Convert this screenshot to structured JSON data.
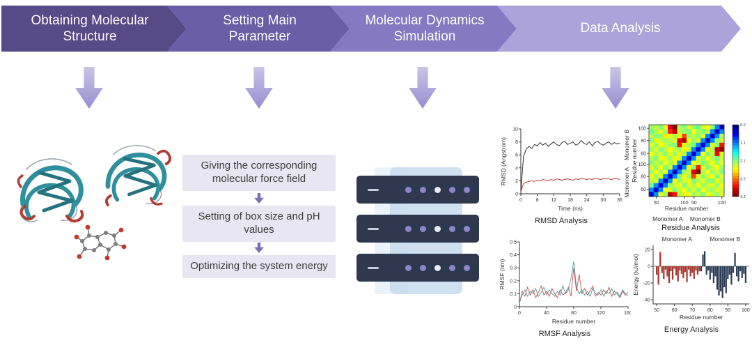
{
  "banners": [
    {
      "label": "Obtaining Molecular Structure",
      "color": "#564a87"
    },
    {
      "label": "Setting Main Parameter",
      "color": "#6a5ea6"
    },
    {
      "label": "Molecular Dynamics Simulation",
      "color": "#8579c2"
    },
    {
      "label": "Data Analysis",
      "color": "#aba3d9"
    }
  ],
  "arrows": {
    "flow_top": "#c9c4e8",
    "flow_bottom": "#968ed0"
  },
  "parameter_steps": {
    "boxes": [
      "Giving the corresponding molecular force field",
      "Setting of box size and pH values",
      "Optimizing the system energy"
    ],
    "box_bg": "#e9e6f4",
    "arrow_color": "#7a70b5"
  },
  "illustrations": {
    "protein": {
      "ribbon_color": "#2f8f9d",
      "strand_color": "#25727e",
      "helix_color": "#b23b32",
      "loop_color": "#98a0a8"
    },
    "server_rack": {
      "units": 3,
      "body_color": "#2e3950",
      "panel_color": "#cfe0f1",
      "led_color": "#8d85c9",
      "led_alt_color": "#e8ebf4"
    }
  },
  "chart_data": [
    {
      "id": "rmsd",
      "type": "line",
      "title": "RMSD Analysis",
      "xlabel": "Time (ns)",
      "ylabel": "RMSD (Angstrom)",
      "xlim": [
        0,
        36
      ],
      "ylim": [
        0,
        10
      ],
      "xticks": [
        0,
        6,
        12,
        18,
        24,
        30,
        36
      ],
      "yticks": [
        0,
        2,
        4,
        6,
        8,
        10
      ],
      "right_labels": [
        "Monomer B",
        "Monomer A"
      ],
      "series": [
        {
          "name": "Monomer B",
          "color": "#1a1a1a",
          "x": [
            0,
            1,
            2,
            3,
            4,
            5,
            6,
            7,
            8,
            9,
            10,
            11,
            12,
            13,
            14,
            15,
            16,
            17,
            18,
            19,
            20,
            21,
            22,
            23,
            24,
            25,
            26,
            27,
            28,
            29,
            30,
            31,
            32,
            33,
            34,
            35,
            36
          ],
          "y": [
            0.4,
            5.8,
            6.9,
            7.3,
            7.0,
            7.6,
            7.4,
            7.9,
            7.5,
            7.8,
            7.3,
            7.7,
            8.0,
            7.6,
            7.4,
            7.9,
            8.1,
            7.6,
            7.8,
            8.0,
            7.5,
            7.7,
            8.2,
            7.8,
            7.6,
            8.0,
            7.4,
            7.9,
            8.1,
            7.7,
            7.5,
            7.8,
            8.0,
            7.6,
            7.9,
            7.7,
            7.8
          ]
        },
        {
          "name": "Monomer A",
          "color": "#c1271d",
          "x": [
            0,
            1,
            2,
            3,
            4,
            5,
            6,
            7,
            8,
            9,
            10,
            11,
            12,
            13,
            14,
            15,
            16,
            17,
            18,
            19,
            20,
            21,
            22,
            23,
            24,
            25,
            26,
            27,
            28,
            29,
            30,
            31,
            32,
            33,
            34,
            35,
            36
          ],
          "y": [
            0.3,
            1.6,
            1.8,
            1.9,
            2.0,
            1.9,
            2.1,
            2.0,
            2.2,
            2.1,
            2.0,
            2.2,
            2.1,
            2.3,
            2.2,
            2.1,
            2.2,
            2.3,
            2.2,
            2.1,
            2.3,
            2.2,
            2.4,
            2.3,
            2.2,
            2.3,
            2.2,
            2.4,
            2.3,
            2.2,
            2.3,
            2.4,
            2.3,
            2.2,
            2.3,
            2.3,
            2.2
          ]
        }
      ]
    },
    {
      "id": "residue",
      "type": "heatmap",
      "title": "Residue Analysis",
      "xlabel": "Residue number",
      "ylabel": "Residue number",
      "group_labels": [
        "Monomer A",
        "Monomer B"
      ],
      "xticks": [
        {
          "label": "50",
          "pos": 0.1
        },
        {
          "label": "100",
          "pos": 0.47
        },
        {
          "label": "50",
          "pos": 0.6
        },
        {
          "label": "100",
          "pos": 0.97
        }
      ],
      "yticks": [
        {
          "label": "100",
          "pos": 0.05
        },
        {
          "label": "80",
          "pos": 0.22
        },
        {
          "label": "60",
          "pos": 0.4
        },
        {
          "label": "100",
          "pos": 0.55
        },
        {
          "label": "80",
          "pos": 0.72
        },
        {
          "label": "60",
          "pos": 0.9
        }
      ],
      "vmax": 4.2,
      "colorbar_ticks": [
        "0.0",
        "1.1",
        "2.1",
        "3.2",
        "4.2"
      ],
      "grid": [
        [
          2.2,
          2.4,
          2.1,
          2.6,
          3.8,
          4.2,
          2.3,
          2.1,
          2.5,
          2.2,
          2.0,
          2.4,
          2.6,
          2.2,
          1.1,
          0.3
        ],
        [
          2.0,
          2.3,
          2.5,
          2.2,
          3.5,
          3.9,
          2.4,
          2.2,
          2.1,
          2.6,
          2.3,
          2.1,
          2.4,
          1.1,
          0.3,
          1.1
        ],
        [
          2.4,
          2.1,
          2.2,
          2.7,
          2.5,
          2.3,
          2.6,
          3.4,
          2.2,
          2.4,
          2.1,
          2.5,
          1.1,
          0.3,
          1.1,
          2.3
        ],
        [
          2.1,
          2.6,
          2.4,
          2.2,
          2.3,
          2.5,
          3.8,
          4.0,
          2.6,
          2.2,
          2.5,
          1.1,
          0.3,
          1.1,
          2.2,
          2.4
        ],
        [
          2.5,
          2.2,
          2.6,
          2.4,
          2.2,
          2.1,
          3.6,
          2.5,
          2.3,
          2.1,
          1.1,
          0.3,
          1.1,
          2.5,
          2.1,
          3.6
        ],
        [
          2.2,
          2.5,
          2.1,
          2.3,
          2.6,
          2.4,
          2.2,
          2.6,
          2.4,
          1.1,
          0.3,
          1.1,
          2.6,
          2.3,
          3.9,
          4.1
        ],
        [
          2.6,
          2.3,
          2.4,
          2.1,
          2.5,
          2.2,
          2.7,
          2.3,
          1.1,
          0.3,
          1.1,
          2.6,
          2.1,
          2.4,
          3.7,
          2.5
        ],
        [
          2.3,
          2.1,
          2.6,
          2.5,
          2.2,
          2.6,
          2.4,
          1.1,
          0.3,
          1.1,
          2.5,
          2.2,
          2.6,
          2.3,
          2.1,
          2.4
        ],
        [
          2.1,
          2.4,
          2.2,
          2.6,
          2.3,
          2.5,
          1.1,
          0.3,
          1.1,
          2.6,
          2.4,
          2.1,
          2.3,
          2.6,
          2.2,
          2.5
        ],
        [
          2.5,
          2.2,
          2.6,
          2.1,
          2.4,
          1.1,
          0.3,
          1.1,
          2.6,
          2.2,
          3.6,
          2.5,
          2.1,
          2.4,
          2.6,
          2.2
        ],
        [
          2.2,
          2.6,
          2.3,
          2.5,
          1.1,
          0.3,
          1.1,
          2.2,
          2.4,
          3.8,
          4.2,
          2.3,
          2.6,
          2.2,
          2.4,
          2.1
        ],
        [
          2.6,
          2.2,
          2.5,
          1.1,
          0.3,
          1.1,
          2.1,
          2.6,
          2.2,
          3.4,
          2.5,
          2.2,
          2.4,
          2.6,
          2.1,
          2.5
        ],
        [
          2.3,
          2.5,
          1.1,
          0.3,
          1.1,
          2.6,
          2.2,
          2.4,
          2.6,
          2.1,
          2.3,
          2.5,
          2.2,
          2.1,
          2.6,
          2.3
        ],
        [
          2.1,
          1.1,
          0.3,
          1.1,
          2.2,
          2.4,
          2.6,
          2.1,
          2.5,
          2.3,
          2.6,
          2.2,
          2.4,
          2.5,
          2.2,
          2.6
        ],
        [
          1.1,
          0.3,
          1.1,
          2.6,
          2.5,
          2.1,
          2.4,
          2.6,
          2.2,
          2.5,
          2.1,
          2.6,
          2.3,
          2.2,
          2.5,
          2.4
        ],
        [
          0.3,
          1.1,
          2.5,
          2.2,
          4.0,
          3.6,
          2.3,
          2.5,
          2.6,
          2.2,
          2.4,
          2.1,
          2.6,
          2.4,
          2.2,
          2.5
        ]
      ]
    },
    {
      "id": "rmsf",
      "type": "line",
      "title": "RMSF Analysis",
      "xlabel": "Residue number",
      "ylabel": "RMSF (nm)",
      "xlim": [
        0,
        160
      ],
      "ylim": [
        0,
        0.5
      ],
      "xticks": [
        0,
        40,
        80,
        120,
        160
      ],
      "yticks": [
        0,
        0.1,
        0.2,
        0.3,
        0.4,
        0.5
      ],
      "series": [
        {
          "name": "Monomer A",
          "color": "#c0504d",
          "x": [
            0,
            4,
            8,
            12,
            16,
            20,
            24,
            28,
            32,
            36,
            40,
            44,
            48,
            52,
            56,
            60,
            64,
            68,
            72,
            76,
            80,
            84,
            88,
            92,
            96,
            100,
            104,
            108,
            112,
            116,
            120,
            124,
            128,
            132,
            136,
            140,
            144,
            148,
            152,
            156,
            160
          ],
          "y": [
            0.02,
            0.12,
            0.08,
            0.15,
            0.09,
            0.13,
            0.07,
            0.11,
            0.16,
            0.09,
            0.12,
            0.08,
            0.14,
            0.1,
            0.07,
            0.13,
            0.09,
            0.11,
            0.15,
            0.08,
            0.3,
            0.12,
            0.25,
            0.1,
            0.14,
            0.09,
            0.12,
            0.16,
            0.08,
            0.11,
            0.09,
            0.13,
            0.1,
            0.15,
            0.08,
            0.12,
            0.1,
            0.07,
            0.12,
            0.09,
            0.11
          ]
        },
        {
          "name": "Monomer B",
          "color": "#4f9ba0",
          "x": [
            0,
            4,
            8,
            12,
            16,
            20,
            24,
            28,
            32,
            36,
            40,
            44,
            48,
            52,
            56,
            60,
            64,
            68,
            72,
            76,
            80,
            84,
            88,
            92,
            96,
            100,
            104,
            108,
            112,
            116,
            120,
            124,
            128,
            132,
            136,
            140,
            144,
            148,
            152,
            156,
            160
          ],
          "y": [
            0.03,
            0.09,
            0.13,
            0.08,
            0.12,
            0.1,
            0.14,
            0.08,
            0.11,
            0.15,
            0.09,
            0.13,
            0.1,
            0.08,
            0.12,
            0.09,
            0.16,
            0.1,
            0.13,
            0.22,
            0.35,
            0.15,
            0.1,
            0.13,
            0.09,
            0.12,
            0.08,
            0.14,
            0.1,
            0.09,
            0.13,
            0.08,
            0.12,
            0.1,
            0.14,
            0.09,
            0.11,
            0.08,
            0.13,
            0.1,
            0.08
          ]
        }
      ]
    },
    {
      "id": "energy",
      "type": "bar",
      "title": "Energy Analysis",
      "xlabel": "Residue number",
      "ylabel": "Energy (kJ/mol)",
      "xlim": [
        48,
        102
      ],
      "ylim": [
        -45,
        25
      ],
      "xticks": [
        50,
        60,
        70,
        80,
        90,
        100
      ],
      "yticks": [
        -40,
        -20,
        0,
        20
      ],
      "group_labels": [
        "Monomer A",
        "Monomer B"
      ],
      "series": [
        {
          "name": "Monomer A",
          "color": "#a6342c",
          "points": [
            [
              50,
              -10
            ],
            [
              51,
              -22
            ],
            [
              52,
              17
            ],
            [
              53,
              -8
            ],
            [
              54,
              -15
            ],
            [
              55,
              -4
            ],
            [
              56,
              -12
            ],
            [
              57,
              -20
            ],
            [
              58,
              -6
            ],
            [
              59,
              -16
            ],
            [
              60,
              -3
            ],
            [
              61,
              -11
            ],
            [
              62,
              -18
            ],
            [
              63,
              -5
            ],
            [
              64,
              -9
            ],
            [
              65,
              -14
            ],
            [
              66,
              -7
            ],
            [
              67,
              -19
            ],
            [
              68,
              -4
            ],
            [
              69,
              -12
            ],
            [
              70,
              -8
            ],
            [
              71,
              -15
            ],
            [
              72,
              -5
            ],
            [
              73,
              -10
            ],
            [
              74,
              -6
            ]
          ]
        },
        {
          "name": "Monomer B",
          "color": "#2b3a55",
          "points": [
            [
              75,
              -6
            ],
            [
              76,
              14
            ],
            [
              77,
              18
            ],
            [
              78,
              -10
            ],
            [
              79,
              -5
            ],
            [
              80,
              -16
            ],
            [
              81,
              -8
            ],
            [
              82,
              -20
            ],
            [
              83,
              -12
            ],
            [
              84,
              -28
            ],
            [
              85,
              -35
            ],
            [
              86,
              -30
            ],
            [
              87,
              -38
            ],
            [
              88,
              -25
            ],
            [
              89,
              -32
            ],
            [
              90,
              -15
            ],
            [
              91,
              -10
            ],
            [
              92,
              -22
            ],
            [
              93,
              -8
            ],
            [
              94,
              16
            ],
            [
              95,
              -12
            ],
            [
              96,
              -18
            ],
            [
              97,
              -6
            ],
            [
              98,
              -14
            ],
            [
              99,
              -9
            ],
            [
              100,
              -20
            ]
          ]
        }
      ]
    }
  ]
}
